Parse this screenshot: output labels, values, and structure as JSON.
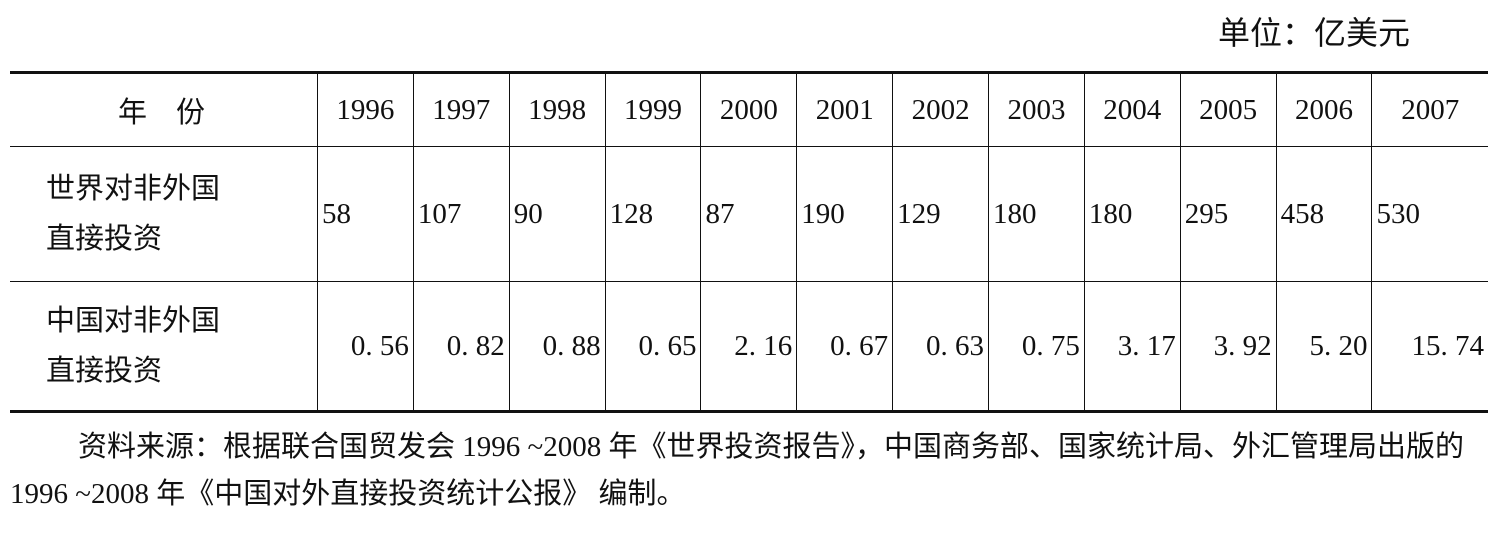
{
  "unit": "单位：亿美元",
  "table": {
    "header": [
      "年　份",
      "1996",
      "1997",
      "1998",
      "1999",
      "2000",
      "2001",
      "2002",
      "2003",
      "2004",
      "2005",
      "2006",
      "2007"
    ],
    "rows": [
      [
        "世界对非外国直接投资",
        "58",
        "107",
        "90",
        "128",
        "87",
        "190",
        "129",
        "180",
        "180",
        "295",
        "458",
        "530"
      ],
      [
        "中国对非外国直接投资",
        "0. 56",
        "0. 82",
        "0. 88",
        "0. 65",
        "2. 16",
        "0. 67",
        "0. 63",
        "0. 75",
        "3. 17",
        "3. 92",
        "5. 20",
        "15. 74"
      ]
    ]
  },
  "note": "资料来源：根据联合国贸发会 1996 ~2008 年《世界投资报告》，中国商务部、国家统计局、外汇管理局出版的 1996 ~2008 年《中国对外直接投资统计公报》 编制。"
}
